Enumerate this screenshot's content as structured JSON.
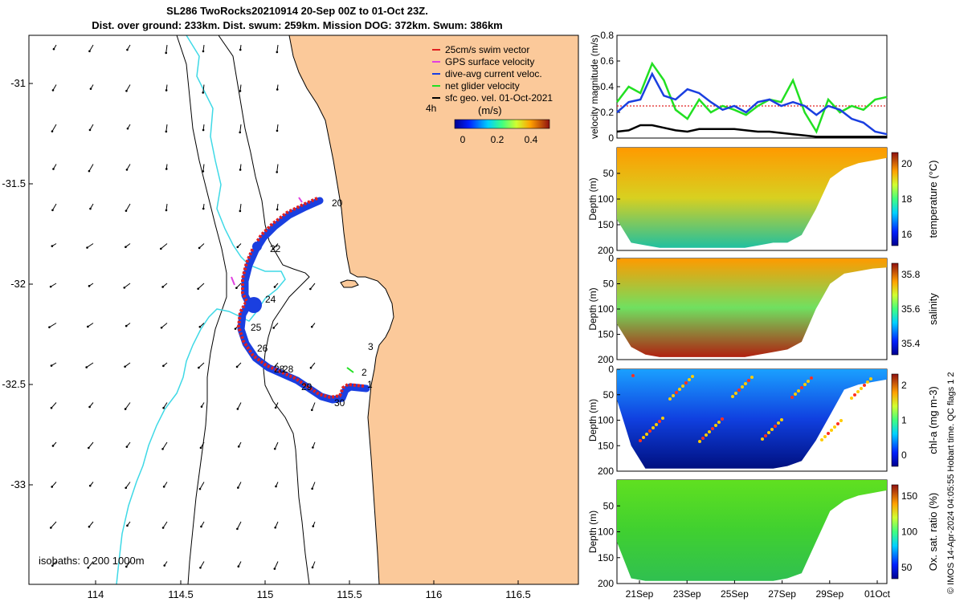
{
  "title": {
    "line1": "SL286 TwoRocks20210914 20-Sep 00Z to 01-Oct 23Z.",
    "line2": "Dist. over ground: 233km. Dist. swum: 259km. Mission DOG: 372km. Swum: 386km"
  },
  "colors": {
    "ocean": "#ffffff",
    "land": "#fbc99a",
    "isobath": "#3fd9e6",
    "swim_vector": "#e02020",
    "gps_velocity": "#e040e0",
    "dive_current": "#1a3fe0",
    "net_glider": "#22e022",
    "sfc_geo": "#000000"
  },
  "map": {
    "legend": [
      {
        "label": "25cm/s swim vector",
        "color": "#e02020"
      },
      {
        "label": "GPS surface velocity",
        "color": "#e040e0"
      },
      {
        "label": "dive-avg current veloc.",
        "color": "#1a3fe0"
      },
      {
        "label": "net glider velocity",
        "color": "#22e022"
      },
      {
        "label": "sfc geo. vel. 01-Oct-2021",
        "color": "#000000"
      }
    ],
    "label_4h": "4h",
    "colorbar_label": "(m/s)",
    "colorbar_ticks": [
      "0",
      "0.2",
      "0.4"
    ],
    "isobath_note": "isobaths: 0   200  1000m",
    "xticks": [
      "114",
      "114.5",
      "115",
      "115.5",
      "116",
      "116.5"
    ],
    "yticks": [
      "-31",
      "-31.5",
      "-32",
      "-32.5",
      "-33"
    ],
    "day_labels": [
      "20",
      "22",
      "24",
      "25",
      "26",
      "28",
      "28",
      "29",
      "30",
      "1",
      "2",
      "3"
    ]
  },
  "chart_data": [
    {
      "type": "line",
      "title": "velocity magnitude",
      "ylabel": "velocity magnitude (m/s)",
      "ylim": [
        0,
        0.8
      ],
      "yticks": [
        "0",
        "0.2",
        "0.4",
        "0.6",
        "0.8"
      ],
      "x": [
        0,
        0.5,
        1,
        1.5,
        2,
        2.5,
        3,
        3.5,
        4,
        4.5,
        5,
        5.5,
        6,
        6.5,
        7,
        7.5,
        8,
        8.5,
        9,
        9.5,
        10,
        10.5,
        11,
        11.5
      ],
      "series": [
        {
          "name": "swim vector",
          "color": "#e02020",
          "values": [
            0.25,
            0.25,
            0.25,
            0.25,
            0.25,
            0.25,
            0.25,
            0.25,
            0.25,
            0.25,
            0.25,
            0.25,
            0.25,
            0.25,
            0.25,
            0.25,
            0.25,
            0.25,
            0.25,
            0.25,
            0.25,
            0.25,
            0.25,
            0.25
          ]
        },
        {
          "name": "net glider velocity",
          "color": "#22e022",
          "values": [
            0.28,
            0.4,
            0.35,
            0.58,
            0.45,
            0.22,
            0.15,
            0.3,
            0.2,
            0.25,
            0.22,
            0.18,
            0.25,
            0.3,
            0.28,
            0.45,
            0.2,
            0.05,
            0.3,
            0.2,
            0.25,
            0.22,
            0.3,
            0.32
          ]
        },
        {
          "name": "dive-avg current",
          "color": "#1a3fe0",
          "values": [
            0.2,
            0.28,
            0.3,
            0.5,
            0.33,
            0.3,
            0.38,
            0.35,
            0.28,
            0.22,
            0.25,
            0.2,
            0.28,
            0.3,
            0.25,
            0.28,
            0.25,
            0.18,
            0.25,
            0.22,
            0.15,
            0.12,
            0.05,
            0.03
          ]
        },
        {
          "name": "sfc geo. vel.",
          "color": "#000000",
          "values": [
            0.05,
            0.06,
            0.1,
            0.1,
            0.08,
            0.06,
            0.05,
            0.07,
            0.07,
            0.07,
            0.07,
            0.06,
            0.05,
            0.05,
            0.04,
            0.03,
            0.02,
            0.01,
            0.01,
            0.01,
            0.01,
            0.01,
            0.01,
            0.01
          ]
        }
      ]
    },
    {
      "type": "heatmap",
      "title": "temperature",
      "ylabel": "Depth (m)",
      "clabel": "temperature (°C)",
      "ylim": [
        200,
        0
      ],
      "yticks": [
        "50",
        "100",
        "150",
        "200"
      ],
      "colorbar_ticks": [
        "16",
        "18",
        "20"
      ],
      "profile_depth": [
        140,
        185,
        190,
        195,
        195,
        195,
        195,
        195,
        195,
        195,
        190,
        185,
        185,
        170,
        120,
        60,
        40,
        30,
        25,
        20
      ]
    },
    {
      "type": "heatmap",
      "title": "salinity",
      "ylabel": "Depth (m)",
      "clabel": "salinity",
      "ylim": [
        200,
        0
      ],
      "yticks": [
        "0",
        "50",
        "100",
        "150",
        "200"
      ],
      "colorbar_ticks": [
        "35.4",
        "35.6",
        "35.8"
      ],
      "profile_depth": [
        130,
        175,
        190,
        195,
        195,
        195,
        195,
        195,
        195,
        195,
        190,
        185,
        180,
        165,
        100,
        50,
        30,
        25,
        20,
        18
      ]
    },
    {
      "type": "heatmap",
      "title": "chl-a",
      "ylabel": "Depth (m)",
      "clabel": "chl-a (mg m-3)",
      "ylim": [
        200,
        0
      ],
      "yticks": [
        "0",
        "50",
        "100",
        "150",
        "200"
      ],
      "colorbar_ticks": [
        "0",
        "1",
        "2"
      ],
      "profile_depth": [
        60,
        150,
        195,
        195,
        195,
        195,
        195,
        195,
        195,
        195,
        195,
        195,
        190,
        180,
        140,
        90,
        40,
        30,
        25,
        20
      ]
    },
    {
      "type": "heatmap",
      "title": "Ox. sat. ratio",
      "ylabel": "Depth (m)",
      "clabel": "Ox. sat. ratio (%)",
      "ylim": [
        200,
        0
      ],
      "yticks": [
        "50",
        "100",
        "150",
        "200"
      ],
      "colorbar_ticks": [
        "50",
        "100",
        "150"
      ],
      "xticks": [
        "21Sep",
        "23Sep",
        "25Sep",
        "27Sep",
        "29Sep",
        "01Oct"
      ],
      "profile_depth": [
        120,
        190,
        195,
        195,
        195,
        195,
        195,
        195,
        195,
        195,
        195,
        195,
        190,
        180,
        120,
        60,
        40,
        30,
        25,
        20
      ]
    }
  ],
  "side_note": "© IMOS 14-Apr-2024 04:05:55 Hobart time. QC flags 1  2"
}
